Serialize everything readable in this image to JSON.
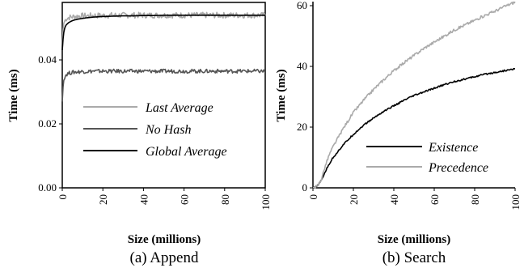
{
  "chart_data": [
    {
      "type": "line",
      "caption": "(a) Append",
      "xlabel": "Size (millions)",
      "ylabel": "Time (ms)",
      "xlim": [
        0,
        100
      ],
      "ylim": [
        0,
        0.058
      ],
      "x_ticks": [
        "0",
        "20",
        "40",
        "60",
        "80",
        "100"
      ],
      "y_ticks": [
        "0.00",
        "0.02",
        "0.04"
      ],
      "legend_position": "bottom-right",
      "series": [
        {
          "name": "Last Average",
          "color": "#aaaaaa",
          "x": [
            0,
            0.3,
            0.6,
            1,
            1.5,
            2,
            3,
            4,
            5,
            6,
            8,
            10,
            12,
            15,
            20,
            25,
            30,
            35,
            40,
            45,
            50,
            55,
            60,
            65,
            70,
            75,
            80,
            85,
            90,
            95,
            100
          ],
          "y": [
            0.043,
            0.049,
            0.051,
            0.052,
            0.0525,
            0.053,
            0.0532,
            0.0534,
            0.0535,
            0.0536,
            0.0537,
            0.0538,
            0.0538,
            0.0539,
            0.0539,
            0.054,
            0.054,
            0.054,
            0.054,
            0.054,
            0.054,
            0.054,
            0.054,
            0.054,
            0.054,
            0.054,
            0.054,
            0.054,
            0.054,
            0.054,
            0.054
          ]
        },
        {
          "name": "No Hash",
          "color": "#555555",
          "x": [
            0,
            0.3,
            0.6,
            1,
            1.5,
            2,
            3,
            4,
            5,
            6,
            8,
            10,
            12,
            15,
            20,
            25,
            30,
            35,
            40,
            45,
            50,
            55,
            60,
            65,
            70,
            75,
            80,
            85,
            90,
            95,
            100
          ],
          "y": [
            0.027,
            0.031,
            0.033,
            0.0345,
            0.035,
            0.0355,
            0.0358,
            0.036,
            0.0361,
            0.0362,
            0.0363,
            0.0364,
            0.0364,
            0.0365,
            0.0365,
            0.0365,
            0.0365,
            0.0365,
            0.0365,
            0.0365,
            0.0365,
            0.0365,
            0.0365,
            0.0365,
            0.0365,
            0.0365,
            0.0365,
            0.0365,
            0.0365,
            0.0365,
            0.0365
          ]
        },
        {
          "name": "Global Average",
          "color": "#000000",
          "x": [
            0,
            0.3,
            0.6,
            1,
            1.5,
            2,
            3,
            4,
            5,
            6,
            8,
            10,
            12,
            15,
            20,
            25,
            30,
            35,
            40,
            45,
            50,
            55,
            60,
            65,
            70,
            75,
            80,
            85,
            90,
            95,
            100
          ],
          "y": [
            0.043,
            0.046,
            0.048,
            0.0495,
            0.0505,
            0.051,
            0.0516,
            0.052,
            0.0523,
            0.0525,
            0.0528,
            0.053,
            0.0532,
            0.0534,
            0.0536,
            0.0537,
            0.0538,
            0.0538,
            0.0539,
            0.0539,
            0.054,
            0.054,
            0.054,
            0.054,
            0.054,
            0.054,
            0.054,
            0.054,
            0.054,
            0.054,
            0.054
          ]
        }
      ]
    },
    {
      "type": "line",
      "caption": "(b) Search",
      "xlabel": "Size (millions)",
      "ylabel": "Time (ms)",
      "xlim": [
        0,
        100
      ],
      "ylim": [
        0,
        61
      ],
      "x_ticks": [
        "0",
        "20",
        "40",
        "60",
        "80",
        "100"
      ],
      "y_ticks": [
        "0",
        "20",
        "40",
        "60"
      ],
      "legend_position": "bottom-right",
      "series": [
        {
          "name": "Existence",
          "color": "#000000",
          "x": [
            0,
            2,
            4,
            6,
            8,
            10,
            15,
            20,
            25,
            30,
            35,
            40,
            45,
            50,
            55,
            60,
            65,
            70,
            75,
            80,
            85,
            90,
            95,
            100
          ],
          "y": [
            0,
            0.6,
            2.2,
            5.2,
            7.8,
            10.0,
            14.2,
            17.6,
            20.6,
            23.0,
            25.2,
            27.0,
            28.8,
            30.4,
            31.6,
            32.8,
            34.0,
            35.0,
            35.8,
            36.6,
            37.4,
            38.0,
            38.6,
            39.2
          ]
        },
        {
          "name": "Precedence",
          "color": "#aaaaaa",
          "x": [
            0,
            2,
            4,
            6,
            8,
            10,
            15,
            20,
            25,
            30,
            35,
            40,
            45,
            50,
            55,
            60,
            65,
            70,
            75,
            80,
            85,
            90,
            95,
            100
          ],
          "y": [
            0,
            0.5,
            2.5,
            7.0,
            10.8,
            13.6,
            19.6,
            24.8,
            28.8,
            32.4,
            35.6,
            38.6,
            41.2,
            43.6,
            46.0,
            48.0,
            50.0,
            52.0,
            53.6,
            55.2,
            56.8,
            58.2,
            59.8,
            61.2
          ]
        }
      ]
    }
  ]
}
